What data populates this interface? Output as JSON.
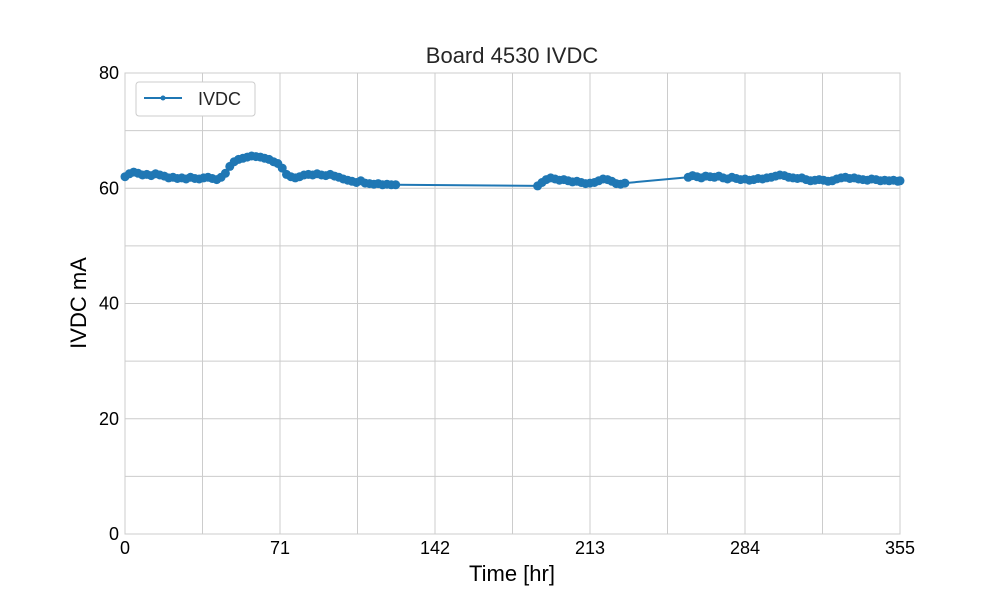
{
  "chart_data": {
    "type": "line",
    "title": "Board 4530 IVDC",
    "xlabel": "Time [hr]",
    "ylabel": "IVDC mA",
    "xlim": [
      0,
      355
    ],
    "ylim": [
      0,
      80
    ],
    "x_ticks": [
      "0",
      "71",
      "142",
      "213",
      "284",
      "355"
    ],
    "y_ticks": [
      "0",
      "20",
      "40",
      "60",
      "80"
    ],
    "grid": true,
    "legend_position": "top-left",
    "series": [
      {
        "name": "IVDC",
        "color": "#1f77b4",
        "points": [
          [
            0,
            62.0
          ],
          [
            2,
            62.5
          ],
          [
            4,
            62.8
          ],
          [
            6,
            62.6
          ],
          [
            8,
            62.3
          ],
          [
            10,
            62.4
          ],
          [
            12,
            62.2
          ],
          [
            14,
            62.5
          ],
          [
            16,
            62.3
          ],
          [
            18,
            62.1
          ],
          [
            20,
            61.8
          ],
          [
            22,
            61.9
          ],
          [
            24,
            61.7
          ],
          [
            26,
            61.8
          ],
          [
            28,
            61.6
          ],
          [
            30,
            61.9
          ],
          [
            32,
            61.7
          ],
          [
            34,
            61.6
          ],
          [
            36,
            61.8
          ],
          [
            38,
            61.9
          ],
          [
            40,
            61.7
          ],
          [
            42,
            61.5
          ],
          [
            44,
            61.9
          ],
          [
            46,
            62.6
          ],
          [
            48,
            63.8
          ],
          [
            50,
            64.6
          ],
          [
            52,
            65.0
          ],
          [
            54,
            65.2
          ],
          [
            56,
            65.4
          ],
          [
            58,
            65.6
          ],
          [
            60,
            65.5
          ],
          [
            62,
            65.4
          ],
          [
            64,
            65.2
          ],
          [
            66,
            65.0
          ],
          [
            68,
            64.6
          ],
          [
            70,
            64.3
          ],
          [
            72,
            63.5
          ],
          [
            74,
            62.4
          ],
          [
            76,
            62.0
          ],
          [
            78,
            61.8
          ],
          [
            80,
            62.0
          ],
          [
            82,
            62.3
          ],
          [
            84,
            62.4
          ],
          [
            86,
            62.3
          ],
          [
            88,
            62.5
          ],
          [
            90,
            62.3
          ],
          [
            92,
            62.2
          ],
          [
            94,
            62.4
          ],
          [
            96,
            62.1
          ],
          [
            98,
            61.9
          ],
          [
            100,
            61.6
          ],
          [
            102,
            61.4
          ],
          [
            104,
            61.2
          ],
          [
            106,
            61.0
          ],
          [
            108,
            61.3
          ],
          [
            110,
            60.9
          ],
          [
            112,
            60.8
          ],
          [
            114,
            60.7
          ],
          [
            116,
            60.8
          ],
          [
            118,
            60.6
          ],
          [
            120,
            60.7
          ],
          [
            122,
            60.6
          ],
          [
            124,
            60.6
          ],
          [
            189,
            60.4
          ],
          [
            191,
            61.0
          ],
          [
            193,
            61.5
          ],
          [
            195,
            61.8
          ],
          [
            197,
            61.6
          ],
          [
            199,
            61.4
          ],
          [
            201,
            61.5
          ],
          [
            203,
            61.3
          ],
          [
            205,
            61.1
          ],
          [
            207,
            61.2
          ],
          [
            209,
            61.0
          ],
          [
            211,
            60.8
          ],
          [
            213,
            60.9
          ],
          [
            215,
            61.0
          ],
          [
            217,
            61.3
          ],
          [
            219,
            61.6
          ],
          [
            221,
            61.5
          ],
          [
            223,
            61.2
          ],
          [
            225,
            60.8
          ],
          [
            227,
            60.7
          ],
          [
            229,
            60.9
          ],
          [
            258,
            61.9
          ],
          [
            260,
            62.2
          ],
          [
            262,
            62.0
          ],
          [
            264,
            61.8
          ],
          [
            266,
            62.1
          ],
          [
            268,
            62.0
          ],
          [
            270,
            61.9
          ],
          [
            272,
            62.1
          ],
          [
            274,
            61.8
          ],
          [
            276,
            61.6
          ],
          [
            278,
            61.9
          ],
          [
            280,
            61.7
          ],
          [
            282,
            61.5
          ],
          [
            284,
            61.6
          ],
          [
            286,
            61.4
          ],
          [
            288,
            61.5
          ],
          [
            290,
            61.7
          ],
          [
            292,
            61.6
          ],
          [
            294,
            61.8
          ],
          [
            296,
            61.9
          ],
          [
            298,
            62.1
          ],
          [
            300,
            62.3
          ],
          [
            302,
            62.2
          ],
          [
            304,
            61.9
          ],
          [
            306,
            61.8
          ],
          [
            308,
            61.7
          ],
          [
            310,
            61.8
          ],
          [
            312,
            61.5
          ],
          [
            314,
            61.3
          ],
          [
            316,
            61.4
          ],
          [
            318,
            61.5
          ],
          [
            320,
            61.4
          ],
          [
            322,
            61.2
          ],
          [
            324,
            61.3
          ],
          [
            326,
            61.6
          ],
          [
            328,
            61.8
          ],
          [
            330,
            61.9
          ],
          [
            332,
            61.7
          ],
          [
            334,
            61.8
          ],
          [
            336,
            61.6
          ],
          [
            338,
            61.5
          ],
          [
            340,
            61.4
          ],
          [
            342,
            61.6
          ],
          [
            344,
            61.5
          ],
          [
            346,
            61.3
          ],
          [
            348,
            61.4
          ],
          [
            350,
            61.3
          ],
          [
            352,
            61.4
          ],
          [
            354,
            61.2
          ],
          [
            355,
            61.3
          ]
        ]
      }
    ]
  }
}
